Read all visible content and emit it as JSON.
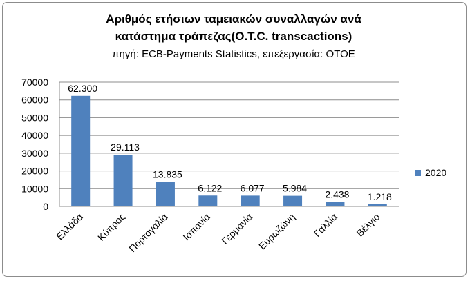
{
  "chart_data": {
    "type": "bar",
    "title_line1": "Αριθμός ετήσιων ταμειακών συναλλαγών ανά",
    "title_line2": "κατάστημα τράπεζας(O.T.C. transcactions)",
    "subtitle": "πηγή: ECB-Payments Statistics, επεξεργασία: ΟΤΟΕ",
    "categories": [
      "Ελλάδα",
      "Κύπρος",
      "Πορτογαλία",
      "Ισπανία",
      "Γερμανία",
      "Ευρωζώνη",
      "Γαλλία",
      "Βέλγιο"
    ],
    "series": [
      {
        "name": "2020",
        "values": [
          62300,
          29113,
          13835,
          6122,
          6077,
          5984,
          2438,
          1218
        ],
        "labels": [
          "62.300",
          "29.113",
          "13.835",
          "6.122",
          "6.077",
          "5.984",
          "2.438",
          "1.218"
        ],
        "color": "#4f81bd"
      }
    ],
    "ylim": [
      0,
      70000
    ],
    "yticks": [
      0,
      10000,
      20000,
      30000,
      40000,
      50000,
      60000,
      70000
    ],
    "grid": true,
    "legend": "right"
  }
}
